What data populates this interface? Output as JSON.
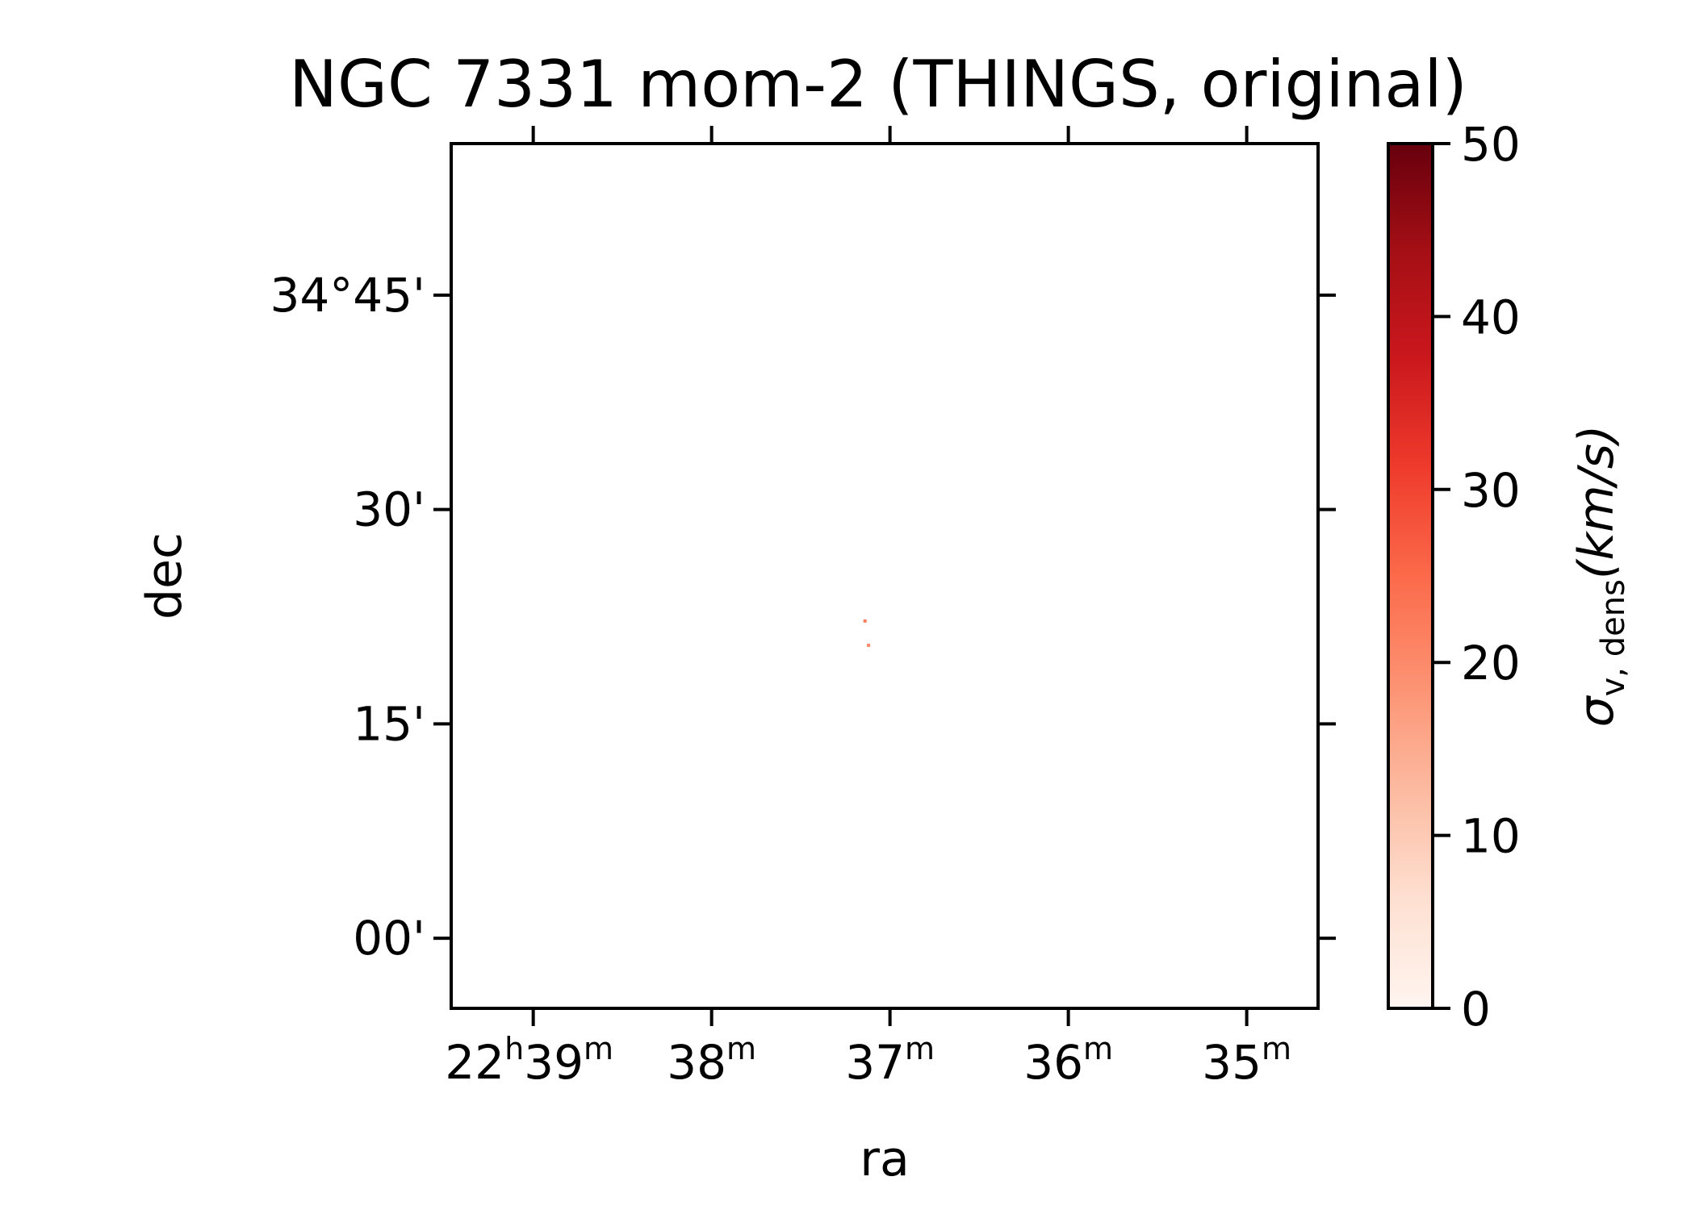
{
  "chart_data": {
    "type": "heatmap",
    "title": "NGC 7331 mom-2 (THINGS, original)",
    "xlabel": "ra",
    "ylabel": "dec",
    "x_ticks": [
      {
        "major": "22",
        "major_unit": "h",
        "minor": "39",
        "minor_unit": "m",
        "ra_min": 39
      },
      {
        "major": "",
        "major_unit": "",
        "minor": "38",
        "minor_unit": "m",
        "ra_min": 38
      },
      {
        "major": "",
        "major_unit": "",
        "minor": "37",
        "minor_unit": "m",
        "ra_min": 37
      },
      {
        "major": "",
        "major_unit": "",
        "minor": "36",
        "minor_unit": "m",
        "ra_min": 36
      },
      {
        "major": "",
        "major_unit": "",
        "minor": "35",
        "minor_unit": "m",
        "ra_min": 35
      }
    ],
    "xlim_ra_min": [
      39.46,
      34.6
    ],
    "y_ticks": [
      {
        "label": "34°45'",
        "dec_arcmin": 45
      },
      {
        "label": "30'",
        "dec_arcmin": 30
      },
      {
        "label": "15'",
        "dec_arcmin": 15
      },
      {
        "label": "00'",
        "dec_arcmin": 0
      }
    ],
    "ylim_dec_arcmin": [
      -4.9,
      55.6
    ],
    "colorbar": {
      "colormap": "Reds",
      "label_symbol": "σ",
      "label_subscript": "v, dens",
      "label_unit": "(km/s)",
      "vmin": 0,
      "vmax": 50,
      "ticks": [
        0,
        10,
        20,
        30,
        40,
        50
      ]
    },
    "data_points": [
      {
        "ra_min": 37.14,
        "dec_arcmin": 22.2,
        "value": 22
      },
      {
        "ra_min": 37.12,
        "dec_arcmin": 20.5,
        "value": 20
      }
    ],
    "colors": [
      "#fff5f0",
      "#fee0d2",
      "#fcbba1",
      "#fc9272",
      "#fb6a4a",
      "#ef3b2c",
      "#cb181d",
      "#a50f15",
      "#67000d"
    ]
  }
}
